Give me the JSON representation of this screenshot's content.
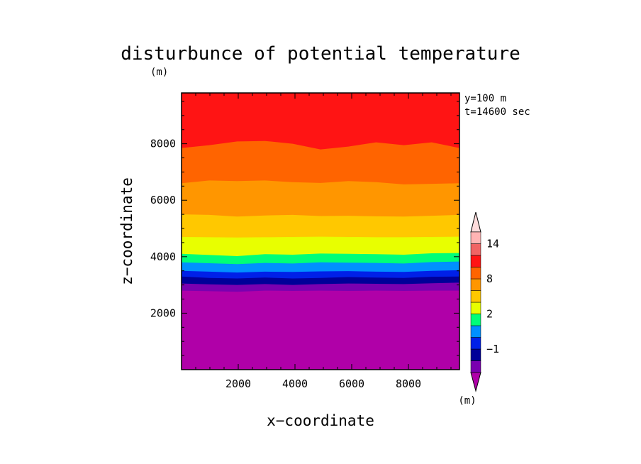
{
  "chart_data": {
    "type": "contour",
    "title": "disturbunce of potential temperature",
    "ylabel_unit": "(m)",
    "xlabel": "x−coordinate",
    "ylabel": "z−coordinate",
    "annotation": [
      "y=100 m",
      "t=14600 sec"
    ],
    "xlim": [
      0,
      9800
    ],
    "ylim": [
      0,
      9800
    ],
    "xticks": [
      2000,
      4000,
      6000,
      8000
    ],
    "xtick_labels": [
      "2000",
      "4000",
      "6000",
      "8000"
    ],
    "yticks": [
      2000,
      4000,
      6000,
      8000
    ],
    "ytick_labels": [
      "2000",
      "4000",
      "6000",
      "8000"
    ],
    "contour_bands": [
      {
        "color": "#b000a8",
        "top": [
          2800,
          2780,
          2760,
          2800,
          2790,
          2800,
          2790,
          2800,
          2790,
          2800,
          2800
        ]
      },
      {
        "color": "#7a00b0",
        "top": [
          3050,
          3020,
          3000,
          3030,
          3000,
          3030,
          3050,
          3040,
          3030,
          3060,
          3080
        ]
      },
      {
        "color": "#000098",
        "top": [
          3300,
          3250,
          3230,
          3260,
          3230,
          3250,
          3280,
          3260,
          3250,
          3290,
          3300
        ]
      },
      {
        "color": "#0020e8",
        "top": [
          3500,
          3470,
          3440,
          3470,
          3460,
          3480,
          3490,
          3470,
          3460,
          3500,
          3520
        ]
      },
      {
        "color": "#0090ff",
        "top": [
          3800,
          3770,
          3740,
          3780,
          3760,
          3800,
          3790,
          3780,
          3760,
          3810,
          3830
        ]
      },
      {
        "color": "#00ff78",
        "top": [
          4100,
          4060,
          4020,
          4090,
          4070,
          4110,
          4100,
          4090,
          4070,
          4120,
          4130
        ]
      },
      {
        "color": "#e8ff00",
        "top": [
          4700,
          4690,
          4680,
          4690,
          4700,
          4710,
          4700,
          4690,
          4690,
          4700,
          4710
        ]
      },
      {
        "color": "#ffc800",
        "top": [
          5500,
          5480,
          5420,
          5460,
          5480,
          5440,
          5450,
          5430,
          5420,
          5450,
          5480
        ]
      },
      {
        "color": "#ff9600",
        "top": [
          6600,
          6700,
          6680,
          6700,
          6640,
          6610,
          6680,
          6640,
          6560,
          6580,
          6600
        ]
      },
      {
        "color": "#ff6400",
        "top": [
          7850,
          7950,
          8080,
          8100,
          8000,
          7800,
          7900,
          8050,
          7950,
          8050,
          7850
        ]
      },
      {
        "color": "#ff1414",
        "top": [
          9800,
          9800,
          9800,
          9800,
          9800,
          9800,
          9800,
          9800,
          9800,
          9800,
          9800
        ]
      }
    ],
    "colorbar": {
      "unit": "(m)",
      "colors": [
        "#b000a8",
        "#7a00b0",
        "#000098",
        "#0020e8",
        "#0090ff",
        "#00ff78",
        "#e8ff00",
        "#ffc800",
        "#ff9600",
        "#ff6400",
        "#ff1414",
        "#f06464",
        "#ffb4b4",
        "#ffdcdc"
      ],
      "labels": [
        {
          "text": "−1",
          "boundary": 3
        },
        {
          "text": "2",
          "boundary": 6
        },
        {
          "text": "8",
          "boundary": 9
        },
        {
          "text": "14",
          "boundary": 12
        }
      ]
    }
  }
}
